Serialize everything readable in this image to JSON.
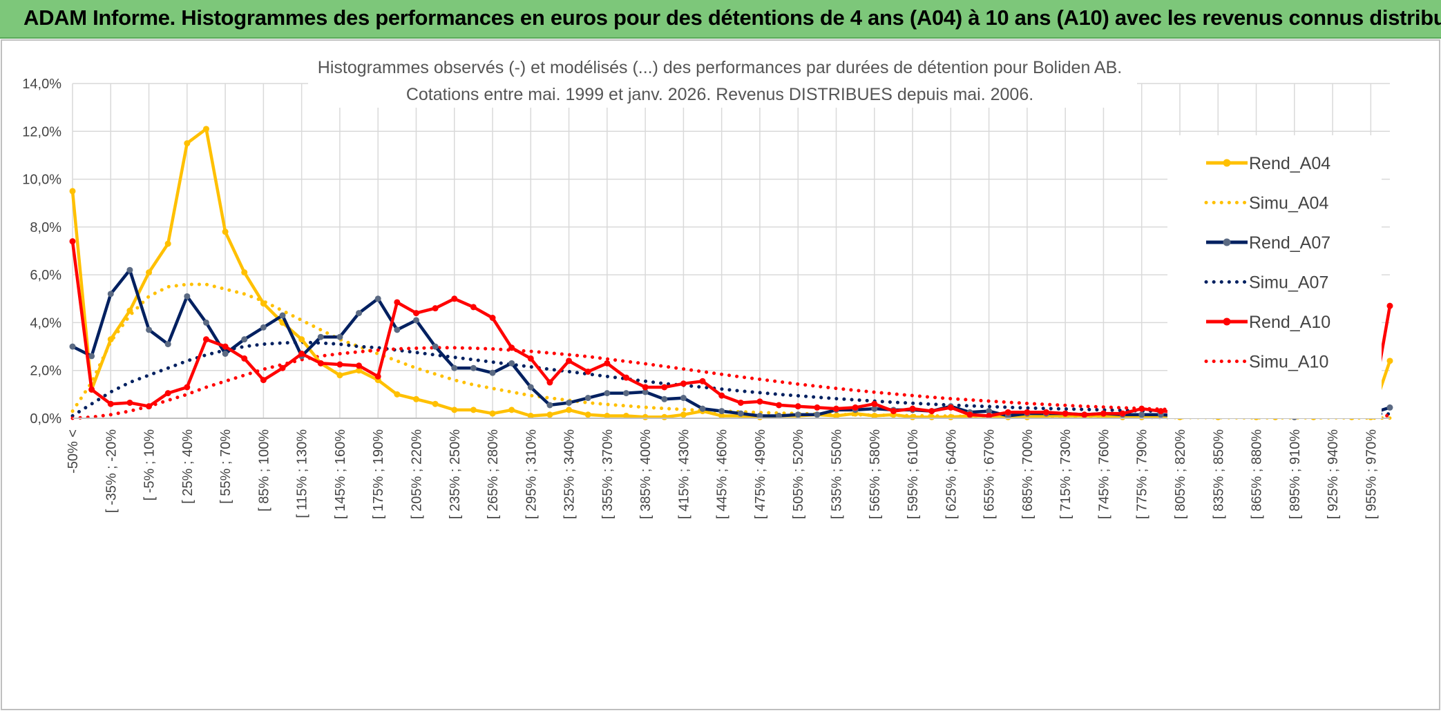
{
  "banner": {
    "title": "ADAM Informe. Histogrammes des performances en euros pour des détentions de 4 ans (A04) à 10 ans (A10) avec les revenus connus distribués"
  },
  "colors": {
    "banner_bg": "#7dc77a",
    "A04": "#ffc000",
    "A07": "#002060",
    "A10": "#ff0000",
    "grid": "#d9d9d9"
  },
  "chart_data": {
    "type": "line",
    "title": "Histogrammes observés (-) et modélisés (...) des performances par durées de détention pour Boliden AB.",
    "subtitle": "Cotations entre mai. 1999 et janv. 2026. Revenus DISTRIBUES depuis mai. 2006.",
    "ylim": [
      0,
      14
    ],
    "yticks": [
      "0,0%",
      "2,0%",
      "4,0%",
      "6,0%",
      "8,0%",
      "10,0%",
      "12,0%",
      "14,0%"
    ],
    "grid": true,
    "legend_position": "right",
    "x_count": 70,
    "x_tick_labels": [
      "-50% <",
      "[ -35% ; -20%",
      "[ -5% ; 10%",
      "[ 25% ; 40%",
      "[ 55% ; 70%",
      "[ 85% ; 100%",
      "[ 115% ; 130%",
      "[ 145% ; 160%",
      "[ 175% ; 190%",
      "[ 205% ; 220%",
      "[ 235% ; 250%",
      "[ 265% ; 280%",
      "[ 295% ; 310%",
      "[ 325% ; 340%",
      "[ 355% ; 370%",
      "[ 385% ; 400%",
      "[ 415% ; 430%",
      "[ 445% ; 460%",
      "[ 475% ; 490%",
      "[ 505% ; 520%",
      "[ 535% ; 550%",
      "[ 565% ; 580%",
      "[ 595% ; 610%",
      "[ 625% ; 640%",
      "[ 655% ; 670%",
      "[ 685% ; 700%",
      "[ 715% ; 730%",
      "[ 745% ; 760%",
      "[ 775% ; 790%",
      "[ 805% ; 820%",
      "[ 835% ; 850%",
      "[ 865% ; 880%",
      "[ 895% ; 910%",
      "[ 925% ; 940%",
      "[ 955% ; 970%"
    ],
    "x_tick_index": [
      0,
      2,
      4,
      6,
      8,
      10,
      12,
      14,
      16,
      18,
      20,
      22,
      24,
      26,
      28,
      30,
      32,
      34,
      36,
      38,
      40,
      42,
      44,
      46,
      48,
      50,
      52,
      54,
      56,
      58,
      60,
      62,
      64,
      66,
      68
    ],
    "series": [
      {
        "name": "Rend_A04",
        "style": "solid",
        "color": "#ffc000",
        "values": [
          9.5,
          1.2,
          3.3,
          4.5,
          6.1,
          7.3,
          11.5,
          12.1,
          7.8,
          6.1,
          4.8,
          4.0,
          3.3,
          2.3,
          1.8,
          2.0,
          1.6,
          1.0,
          0.8,
          0.6,
          0.35,
          0.35,
          0.2,
          0.35,
          0.1,
          0.15,
          0.35,
          0.15,
          0.1,
          0.1,
          0.05,
          0.05,
          0.15,
          0.3,
          0.1,
          0.1,
          0.05,
          0.1,
          0.1,
          0.15,
          0.1,
          0.2,
          0.1,
          0.15,
          0.05,
          0.05,
          0.05,
          0.1,
          0.1,
          0.05,
          0.05,
          0.1,
          0.1,
          0.1,
          0.1,
          0.05,
          0.05,
          0.1,
          0.05,
          0.1,
          0.05,
          0.1,
          0.05,
          0.05,
          0.05,
          0.05,
          0.1,
          0.05,
          0.05,
          2.4
        ]
      },
      {
        "name": "Simu_A04",
        "style": "dotted",
        "color": "#ffc000",
        "values": [
          0.3,
          1.5,
          3.2,
          4.3,
          5.1,
          5.5,
          5.6,
          5.6,
          5.4,
          5.2,
          4.9,
          4.5,
          4.1,
          3.7,
          3.3,
          3.0,
          2.7,
          2.4,
          2.1,
          1.85,
          1.6,
          1.4,
          1.25,
          1.1,
          0.95,
          0.85,
          0.75,
          0.65,
          0.58,
          0.52,
          0.46,
          0.41,
          0.37,
          0.33,
          0.3,
          0.27,
          0.24,
          0.22,
          0.2,
          0.18,
          0.16,
          0.15,
          0.13,
          0.12,
          0.11,
          0.1,
          0.09,
          0.08,
          0.07,
          0.07,
          0.06,
          0.06,
          0.05,
          0.05,
          0.04,
          0.04,
          0.04,
          0.03,
          0.03,
          0.03,
          0.03,
          0.02,
          0.02,
          0.02,
          0.02,
          0.02,
          0.02,
          0.02,
          0.01,
          0.01
        ]
      },
      {
        "name": "Rend_A07",
        "style": "solid",
        "color": "#002060",
        "values": [
          3.0,
          2.6,
          5.2,
          6.2,
          3.7,
          3.1,
          5.1,
          4.0,
          2.7,
          3.3,
          3.8,
          4.3,
          2.6,
          3.4,
          3.4,
          4.4,
          5.0,
          3.7,
          4.1,
          3.0,
          2.1,
          2.1,
          1.9,
          2.3,
          1.3,
          0.55,
          0.65,
          0.85,
          1.05,
          1.05,
          1.1,
          0.8,
          0.85,
          0.4,
          0.3,
          0.2,
          0.1,
          0.1,
          0.15,
          0.15,
          0.35,
          0.35,
          0.4,
          0.35,
          0.35,
          0.3,
          0.5,
          0.25,
          0.3,
          0.1,
          0.2,
          0.2,
          0.2,
          0.15,
          0.2,
          0.15,
          0.15,
          0.15,
          0.1,
          0.1,
          0.1,
          0.15,
          0.1,
          0.1,
          0.05,
          0.1,
          0.1,
          0.1,
          0.2,
          0.45
        ]
      },
      {
        "name": "Simu_A07",
        "style": "dotted",
        "color": "#002060",
        "values": [
          0.1,
          0.6,
          1.1,
          1.5,
          1.8,
          2.1,
          2.4,
          2.65,
          2.85,
          3.0,
          3.1,
          3.15,
          3.18,
          3.15,
          3.1,
          3.0,
          2.95,
          2.85,
          2.75,
          2.65,
          2.55,
          2.45,
          2.35,
          2.25,
          2.15,
          2.05,
          1.95,
          1.85,
          1.75,
          1.65,
          1.55,
          1.45,
          1.38,
          1.3,
          1.22,
          1.14,
          1.07,
          1.0,
          0.94,
          0.88,
          0.82,
          0.77,
          0.72,
          0.67,
          0.63,
          0.59,
          0.55,
          0.52,
          0.49,
          0.46,
          0.43,
          0.41,
          0.39,
          0.37,
          0.35,
          0.33,
          0.31,
          0.3,
          0.28,
          0.27,
          0.26,
          0.25,
          0.24,
          0.23,
          0.22,
          0.21,
          0.2,
          0.2,
          0.19,
          0.18
        ]
      },
      {
        "name": "Rend_A10",
        "style": "solid",
        "color": "#ff0000",
        "values": [
          7.4,
          1.2,
          0.6,
          0.65,
          0.5,
          1.05,
          1.3,
          3.3,
          3.0,
          2.5,
          1.6,
          2.1,
          2.7,
          2.3,
          2.25,
          2.2,
          1.75,
          4.85,
          4.4,
          4.6,
          5.0,
          4.65,
          4.2,
          2.95,
          2.5,
          1.5,
          2.4,
          1.95,
          2.3,
          1.7,
          1.3,
          1.3,
          1.45,
          1.55,
          0.95,
          0.65,
          0.7,
          0.55,
          0.5,
          0.45,
          0.4,
          0.45,
          0.6,
          0.3,
          0.4,
          0.3,
          0.45,
          0.15,
          0.1,
          0.25,
          0.25,
          0.25,
          0.2,
          0.15,
          0.2,
          0.2,
          0.4,
          0.3,
          0.25,
          0.25,
          0.15,
          0.4,
          0.1,
          0.15,
          0.25,
          0.2,
          0.25,
          0.3,
          0.15,
          4.7
        ]
      },
      {
        "name": "Simu_A10",
        "style": "dotted",
        "color": "#ff0000",
        "values": [
          0.0,
          0.05,
          0.15,
          0.3,
          0.5,
          0.75,
          1.0,
          1.3,
          1.55,
          1.8,
          2.05,
          2.25,
          2.45,
          2.6,
          2.7,
          2.78,
          2.85,
          2.9,
          2.93,
          2.95,
          2.95,
          2.93,
          2.9,
          2.85,
          2.8,
          2.73,
          2.66,
          2.58,
          2.48,
          2.38,
          2.28,
          2.17,
          2.06,
          1.95,
          1.84,
          1.73,
          1.63,
          1.53,
          1.43,
          1.34,
          1.25,
          1.17,
          1.09,
          1.02,
          0.95,
          0.88,
          0.82,
          0.77,
          0.72,
          0.67,
          0.62,
          0.58,
          0.54,
          0.5,
          0.47,
          0.44,
          0.41,
          0.38,
          0.36,
          0.34,
          0.32,
          0.3,
          0.28,
          0.26,
          0.25,
          0.23,
          0.22,
          0.21,
          0.2,
          0.09
        ]
      }
    ]
  }
}
